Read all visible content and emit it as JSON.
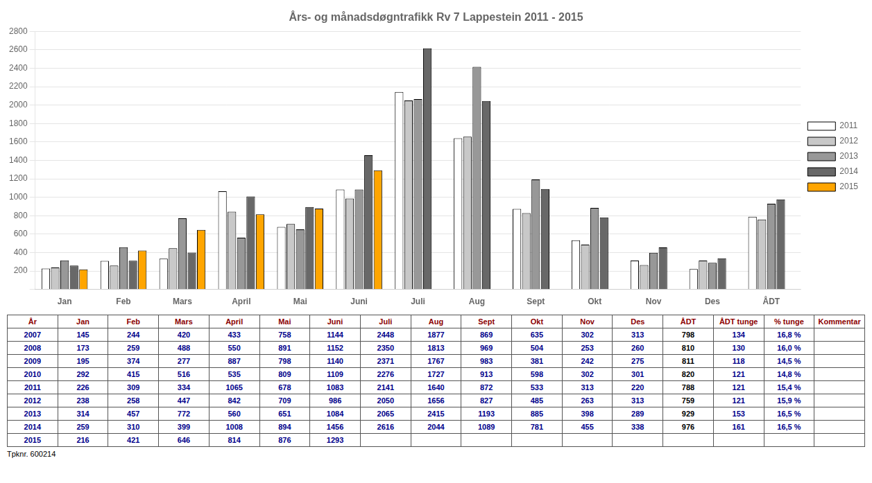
{
  "chart_data": {
    "type": "bar",
    "title": "Års- og månadsdøgntrafikk Rv 7 Lappestein 2011 - 2015",
    "categories": [
      "Jan",
      "Feb",
      "Mars",
      "April",
      "Mai",
      "Juni",
      "Juli",
      "Aug",
      "Sept",
      "Okt",
      "Nov",
      "Des",
      "ÅDT"
    ],
    "series": [
      {
        "name": "2011",
        "color": "#FFFFFF",
        "values": [
          226,
          309,
          334,
          1065,
          678,
          1083,
          2141,
          1640,
          872,
          533,
          313,
          220,
          788
        ]
      },
      {
        "name": "2012",
        "color": "#C8C8C8",
        "values": [
          238,
          258,
          447,
          842,
          709,
          986,
          2050,
          1656,
          827,
          485,
          263,
          313,
          759
        ]
      },
      {
        "name": "2013",
        "color": "#989898",
        "values": [
          314,
          457,
          772,
          560,
          651,
          1084,
          2065,
          2415,
          1193,
          885,
          398,
          289,
          929
        ]
      },
      {
        "name": "2014",
        "color": "#686868",
        "values": [
          259,
          310,
          399,
          1008,
          894,
          1456,
          2616,
          2044,
          1089,
          781,
          455,
          338,
          976
        ]
      },
      {
        "name": "2015",
        "color": "#FFA500",
        "values": [
          216,
          421,
          646,
          814,
          876,
          1293,
          null,
          null,
          null,
          null,
          null,
          null,
          null
        ]
      }
    ],
    "ylim": [
      0,
      2800
    ],
    "yticks": [
      {
        "value": 0,
        "label": ""
      },
      200,
      400,
      600,
      800,
      1000,
      1200,
      1400,
      1600,
      1800,
      2000,
      2200,
      2400,
      2600,
      2800
    ],
    "grid": true,
    "legend": "right",
    "annotations": [
      "Tpknr. 600214"
    ],
    "table": {
      "columns": [
        "År",
        "Jan",
        "Feb",
        "Mars",
        "April",
        "Mai",
        "Juni",
        "Juli",
        "Aug",
        "Sept",
        "Okt",
        "Nov",
        "Des",
        "ÅDT",
        "ÅDT tunge",
        "% tunge",
        "Kommentar"
      ],
      "rows": [
        [
          "2007",
          "145",
          "244",
          "420",
          "433",
          "758",
          "1144",
          "2448",
          "1877",
          "869",
          "635",
          "302",
          "313",
          "798",
          "134",
          "16,8 %",
          null
        ],
        [
          "2008",
          "173",
          "259",
          "488",
          "550",
          "891",
          "1152",
          "2350",
          "1813",
          "969",
          "504",
          "253",
          "260",
          "810",
          "130",
          "16,0 %",
          null
        ],
        [
          "2009",
          "195",
          "374",
          "277",
          "887",
          "798",
          "1140",
          "2371",
          "1767",
          "983",
          "381",
          "242",
          "275",
          "811",
          "118",
          "14,5 %",
          null
        ],
        [
          "2010",
          "292",
          "415",
          "516",
          "535",
          "809",
          "1109",
          "2276",
          "1727",
          "913",
          "598",
          "302",
          "301",
          "820",
          "121",
          "14,8 %",
          null
        ],
        [
          "2011",
          "226",
          "309",
          "334",
          "1065",
          "678",
          "1083",
          "2141",
          "1640",
          "872",
          "533",
          "313",
          "220",
          "788",
          "121",
          "15,4 %",
          null
        ],
        [
          "2012",
          "238",
          "258",
          "447",
          "842",
          "709",
          "986",
          "2050",
          "1656",
          "827",
          "485",
          "263",
          "313",
          "759",
          "121",
          "15,9 %",
          null
        ],
        [
          "2013",
          "314",
          "457",
          "772",
          "560",
          "651",
          "1084",
          "2065",
          "2415",
          "1193",
          "885",
          "398",
          "289",
          "929",
          "153",
          "16,5 %",
          null
        ],
        [
          "2014",
          "259",
          "310",
          "399",
          "1008",
          "894",
          "1456",
          "2616",
          "2044",
          "1089",
          "781",
          "455",
          "338",
          "976",
          "161",
          "16,5 %",
          null
        ],
        [
          "2015",
          "216",
          "421",
          "646",
          "814",
          "876",
          "1293",
          null,
          null,
          null,
          null,
          null,
          null,
          null,
          null,
          null,
          null
        ]
      ]
    }
  }
}
